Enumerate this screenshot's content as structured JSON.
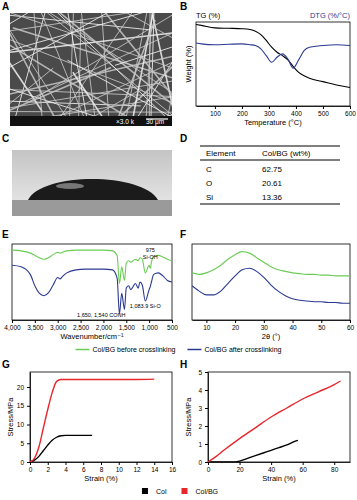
{
  "panel_labels": [
    "A",
    "B",
    "C",
    "D",
    "E",
    "F",
    "G",
    "H"
  ],
  "sem_image": {
    "magnification": "×3.0 k",
    "scale_bar": "30 μm"
  },
  "table": {
    "header": [
      "Element",
      "Col/BG (wt%)"
    ],
    "rows": [
      [
        "C",
        62.75
      ],
      [
        "O",
        20.61
      ],
      [
        "Si",
        13.36
      ]
    ]
  },
  "chart_data": [
    {
      "type": "line",
      "x_label": "Temperature (°C)",
      "y_label": "Weight (%)",
      "xlim": [
        30,
        600
      ],
      "xticks": [
        100,
        200,
        300,
        400,
        500,
        600
      ],
      "ylim": [
        0,
        100
      ],
      "tick_labels": "x",
      "legend": "top",
      "x": [
        30,
        50,
        100,
        150,
        200,
        230,
        250,
        270,
        290,
        310,
        330,
        350,
        370,
        390,
        410,
        430,
        450,
        500,
        550,
        600
      ],
      "series": [
        {
          "name": "TG (%)",
          "color": "#000000",
          "values": [
            97,
            96,
            93,
            92.5,
            92,
            91,
            89,
            85,
            78,
            70,
            64,
            60,
            55,
            47,
            40,
            36,
            33,
            29,
            25,
            22
          ]
        },
        {
          "name": "DTG (%/°C)",
          "color": "#2b3990",
          "values": [
            75,
            74,
            73,
            73.5,
            74,
            73,
            72,
            68,
            60,
            52,
            58,
            62,
            56,
            45,
            55,
            66,
            70,
            72,
            73,
            72
          ]
        }
      ]
    },
    {
      "type": "line",
      "x_label": "Wavenumber/cm⁻¹",
      "xlim": [
        4000,
        500
      ],
      "xticks": [
        {
          "value": 4000,
          "label": "4,000"
        },
        {
          "value": 3500,
          "label": "3,500"
        },
        {
          "value": 3000,
          "label": "3,000"
        },
        {
          "value": 2500,
          "label": "2,500"
        },
        {
          "value": 2000,
          "label": "2,000"
        },
        {
          "value": 1500,
          "label": "1,500"
        },
        {
          "value": 1000,
          "label": "1,000"
        },
        500
      ],
      "ylim": [
        0,
        100
      ],
      "tick_labels": "x",
      "legend": "bottom",
      "annotations": [
        {
          "text": "975",
          "x": 975
        },
        {
          "text": "Si-OH",
          "x": 975
        },
        {
          "text": "1,650, 1,540 CONH",
          "x": 1650
        },
        {
          "text": "1,083.9 Si-O",
          "x": 1084
        }
      ],
      "x": [
        4000,
        3800,
        3600,
        3500,
        3400,
        3300,
        3200,
        3100,
        3000,
        2950,
        2900,
        2800,
        2600,
        2400,
        2200,
        2000,
        1800,
        1700,
        1650,
        1600,
        1540,
        1500,
        1450,
        1400,
        1300,
        1240,
        1200,
        1150,
        1084,
        1000,
        975,
        950,
        900,
        800,
        700,
        600,
        500
      ],
      "series": [
        {
          "name": "Col/BG before crosslinking",
          "color": "#6acc55",
          "values": [
            92,
            91,
            88,
            85,
            82,
            80,
            82,
            86,
            89,
            88,
            89,
            91,
            92,
            92,
            92,
            92,
            91,
            85,
            48,
            70,
            52,
            75,
            78,
            76,
            80,
            78,
            82,
            80,
            62,
            72,
            68,
            76,
            84,
            85,
            83,
            80,
            78
          ]
        },
        {
          "name": "Col/BG after crosslinking",
          "color": "#2b3990",
          "values": [
            72,
            70,
            60,
            45,
            35,
            32,
            36,
            46,
            56,
            54,
            57,
            62,
            66,
            67,
            67,
            67,
            66,
            55,
            8,
            35,
            14,
            42,
            45,
            40,
            48,
            42,
            50,
            46,
            25,
            40,
            44,
            50,
            60,
            62,
            58,
            52,
            50
          ]
        }
      ]
    },
    {
      "type": "line",
      "x_label": "2θ (°)",
      "xlim": [
        5,
        60
      ],
      "xticks": [
        10,
        20,
        30,
        40,
        50,
        60
      ],
      "ylim": [
        0,
        100
      ],
      "tick_labels": "x",
      "x": [
        5,
        7.5,
        10,
        12.5,
        15,
        17.5,
        20,
        22.5,
        25,
        27.5,
        30,
        32.5,
        35,
        37.5,
        40,
        42.5,
        45,
        47.5,
        50,
        52.5,
        55,
        57.5,
        60
      ],
      "series": [
        {
          "color": "#6acc55",
          "values": [
            62,
            60,
            62,
            66,
            72,
            80,
            86,
            90,
            88,
            82,
            76,
            70,
            66,
            64,
            62,
            61,
            60,
            60,
            59,
            59,
            58,
            58,
            58
          ]
        },
        {
          "color": "#2b3990",
          "values": [
            45,
            38,
            33,
            33,
            38,
            48,
            58,
            66,
            68,
            64,
            56,
            46,
            38,
            32,
            28,
            26,
            25,
            24,
            24,
            23,
            23,
            22,
            22
          ]
        }
      ]
    },
    {
      "type": "line",
      "x_label": "Strain (%)",
      "y_label": "Stress/MPa",
      "xlim": [
        0,
        16
      ],
      "xticks": [
        0,
        2,
        4,
        6,
        8,
        10,
        12,
        14,
        16
      ],
      "ylim": [
        0,
        24
      ],
      "yticks": [
        0,
        5,
        10,
        15,
        20
      ],
      "legend": "bottom",
      "series": [
        {
          "name": "Col",
          "color": "#000000",
          "x": [
            0,
            0.5,
            1,
            1.5,
            2,
            2.5,
            3,
            3.5,
            4,
            5,
            6,
            7
          ],
          "values": [
            0,
            0.5,
            1.5,
            3,
            4.5,
            5.8,
            6.6,
            7,
            7.1,
            7.1,
            7.1,
            7.1
          ]
        },
        {
          "name": "Col/BG",
          "color": "#e8262b",
          "x": [
            0,
            0.5,
            1,
            1.5,
            2,
            2.5,
            3,
            3.5,
            4,
            6,
            8,
            10,
            12,
            14
          ],
          "values": [
            0,
            1,
            4,
            9,
            14,
            18.5,
            21.5,
            22,
            22,
            22,
            22,
            22,
            22,
            22.1
          ]
        }
      ]
    },
    {
      "type": "line",
      "x_label": "Strain (%)",
      "y_label": "Stress/MPa",
      "xlim": [
        0,
        90
      ],
      "xticks": [
        0,
        20,
        40,
        60,
        80
      ],
      "ylim": [
        0,
        5
      ],
      "yticks": [
        0,
        1,
        2,
        3,
        4,
        5
      ],
      "series": [
        {
          "color": "#000000",
          "x": [
            0,
            10,
            15,
            20,
            25,
            30,
            35,
            40,
            45,
            50,
            55,
            57
          ],
          "values": [
            0,
            0,
            0,
            0.05,
            0.2,
            0.35,
            0.5,
            0.65,
            0.8,
            0.95,
            1.15,
            1.2
          ]
        },
        {
          "color": "#e8262b",
          "x": [
            0,
            5,
            10,
            20,
            30,
            40,
            50,
            60,
            70,
            80,
            84
          ],
          "values": [
            0,
            0.3,
            0.65,
            1.3,
            1.9,
            2.5,
            3.0,
            3.5,
            3.9,
            4.3,
            4.5
          ]
        }
      ]
    }
  ]
}
